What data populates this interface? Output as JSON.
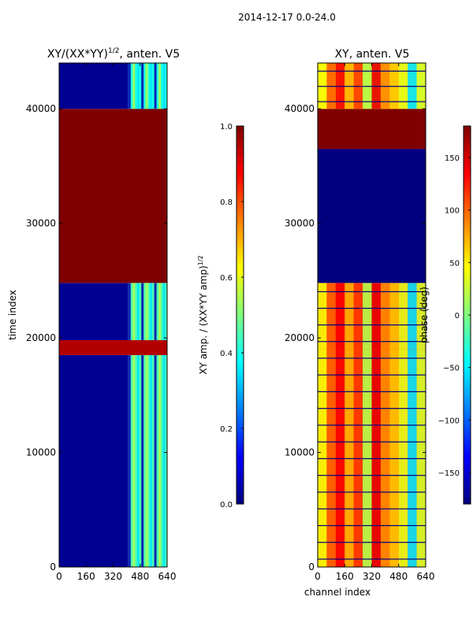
{
  "suptitle": "2014-12-17 0.0-24.0",
  "palette": {
    "jet_stops": [
      "#00007f",
      "#0000ff",
      "#007fff",
      "#00ffff",
      "#7fff7f",
      "#ffff00",
      "#ff7f00",
      "#ff0000",
      "#7f0000"
    ],
    "axis_color": "#000000",
    "background": "#ffffff"
  },
  "chart_data": [
    {
      "type": "heatmap",
      "panel": "left",
      "title": "XY/(XX*YY)",
      "title_sup": "1/2",
      "title_suffix": ", anten. V5",
      "xlabel": "",
      "ylabel": "time index",
      "xlim": [
        0,
        640
      ],
      "ylim": [
        0,
        44000
      ],
      "xticks": [
        0,
        160,
        320,
        480,
        640
      ],
      "yticks": [
        0,
        10000,
        20000,
        30000,
        40000
      ],
      "colorbar": {
        "label_prefix": "XY amp. / (XX*YY amp)",
        "label_sup": "1/2",
        "range": [
          0.0,
          1.0
        ],
        "ticks": [
          "0.0",
          "0.2",
          "0.4",
          "0.6",
          "0.8",
          "1.0"
        ]
      },
      "regions": [
        {
          "t_from": 0,
          "t_to": 18500,
          "ch_from": 0,
          "ch_to": 410,
          "value": 0.02
        },
        {
          "t_from": 0,
          "t_to": 18500,
          "ch_from": 410,
          "ch_to": 640,
          "value": 0.45,
          "pattern": "stripes"
        },
        {
          "t_from": 18500,
          "t_to": 19800,
          "ch_from": 0,
          "ch_to": 640,
          "value": 0.95
        },
        {
          "t_from": 19800,
          "t_to": 24800,
          "ch_from": 0,
          "ch_to": 410,
          "value": 0.02
        },
        {
          "t_from": 19800,
          "t_to": 24800,
          "ch_from": 410,
          "ch_to": 640,
          "value": 0.45,
          "pattern": "stripes"
        },
        {
          "t_from": 24800,
          "t_to": 40000,
          "ch_from": 0,
          "ch_to": 640,
          "value": 1.0
        },
        {
          "t_from": 40000,
          "t_to": 44000,
          "ch_from": 0,
          "ch_to": 410,
          "value": 0.02
        },
        {
          "t_from": 40000,
          "t_to": 44000,
          "ch_from": 410,
          "ch_to": 640,
          "value": 0.4,
          "pattern": "stripes"
        }
      ]
    },
    {
      "type": "heatmap",
      "panel": "right",
      "title": "XY, anten. V5",
      "xlabel": "channel index",
      "ylabel": "",
      "xlim": [
        0,
        640
      ],
      "ylim": [
        0,
        44000
      ],
      "xticks": [
        0,
        160,
        320,
        480,
        640
      ],
      "yticks": [
        0,
        10000,
        20000,
        30000,
        40000
      ],
      "colorbar": {
        "label": "phase (deg)",
        "range": [
          -180,
          180
        ],
        "ticks": [
          "150",
          "100",
          "50",
          "0",
          "−50",
          "−100",
          "−150"
        ],
        "tick_values": [
          150,
          100,
          50,
          0,
          -50,
          -100,
          -150
        ]
      },
      "regions": [
        {
          "t_from": 0,
          "t_to": 19000,
          "ch_from": 0,
          "ch_to": 640,
          "value": 110,
          "pattern": "noisy-phase"
        },
        {
          "t_from": 19000,
          "t_to": 24800,
          "ch_from": 0,
          "ch_to": 640,
          "value": 120,
          "pattern": "noisy-phase"
        },
        {
          "t_from": 24800,
          "t_to": 36500,
          "ch_from": 0,
          "ch_to": 640,
          "value": -180
        },
        {
          "t_from": 36500,
          "t_to": 40000,
          "ch_from": 0,
          "ch_to": 640,
          "value": 180
        },
        {
          "t_from": 40000,
          "t_to": 44000,
          "ch_from": 0,
          "ch_to": 640,
          "value": 60,
          "pattern": "noisy-phase"
        }
      ]
    }
  ]
}
